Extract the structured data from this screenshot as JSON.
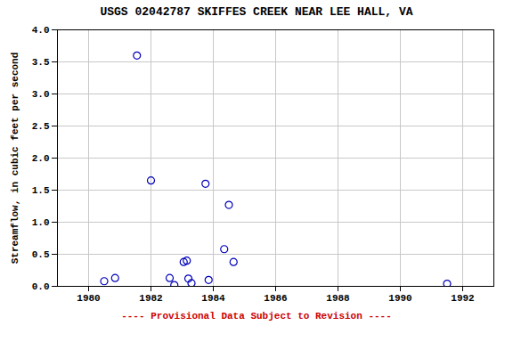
{
  "chart_data": {
    "type": "scatter",
    "title": "USGS 02042787 SKIFFES CREEK NEAR LEE HALL, VA",
    "ylabel": "Streamflow, in cubic feet per second",
    "annotations": [
      {
        "text": "---- Provisional Data Subject to Revision ----",
        "color": "#cc0000"
      }
    ],
    "x": [
      1980.5,
      1980.85,
      1981.55,
      1982.0,
      1982.6,
      1982.75,
      1983.05,
      1983.15,
      1983.2,
      1983.3,
      1983.75,
      1983.85,
      1984.35,
      1984.5,
      1984.65,
      1991.5
    ],
    "values": [
      0.08,
      0.13,
      3.6,
      1.65,
      0.13,
      0.02,
      0.38,
      0.4,
      0.12,
      0.05,
      1.6,
      0.1,
      0.58,
      1.27,
      0.38,
      0.04
    ],
    "color": "#0000bb",
    "marker": "circle",
    "xlim": [
      1979,
      1993
    ],
    "ylim": [
      0.0,
      4.0
    ],
    "xticks": [
      1980,
      1982,
      1984,
      1986,
      1988,
      1990,
      1992
    ],
    "yticks": [
      {
        "value": 0,
        "label": "0.0"
      },
      0.5,
      {
        "value": 1,
        "label": "1.0"
      },
      1.5,
      {
        "value": 2,
        "label": "2.0"
      },
      2.5,
      {
        "value": 3,
        "label": "3.0"
      },
      3.5,
      {
        "value": 4,
        "label": "4.0"
      }
    ],
    "grid": true
  }
}
